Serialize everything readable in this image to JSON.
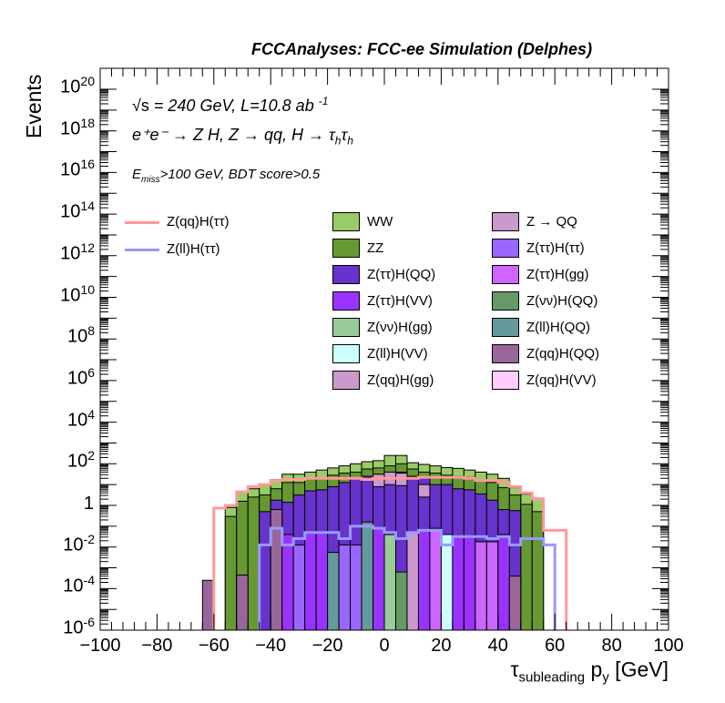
{
  "title": "FCCAnalyses: FCC-ee Simulation (Delphes)",
  "annotations": {
    "line1_sqrt": "√s",
    "line1": " = 240 GeV, L=10.8 ab",
    "line1_sup": "-1",
    "line2": "e⁺e⁻ → Z H, Z → qq, H → τ",
    "line2_sub1": "h",
    "line2_tau": "τ",
    "line2_sub2": "h",
    "line3_E": "E",
    "line3_sub": "miss",
    "line3": ">100 GeV, BDT score>0.5"
  },
  "chart_data": {
    "type": "bar",
    "title": "FCCAnalyses: FCC-ee Simulation (Delphes)",
    "xlabel": "τ_subleading p_y [GeV]",
    "xlabel_main": "τ",
    "xlabel_sub": "subleading",
    "xlabel_rest": " p",
    "xlabel_sub2": "y",
    "xlabel_unit": " [GeV]",
    "ylabel": "Events",
    "yscale": "log",
    "xlim": [
      -100,
      100
    ],
    "ylim_log10": [
      -6,
      20.5
    ],
    "xticks": [
      -100,
      -80,
      -60,
      -40,
      -20,
      0,
      20,
      40,
      60,
      80,
      100
    ],
    "xtick_labels": [
      "−100",
      "−80",
      "−60",
      "−40",
      "−20",
      "0",
      "20",
      "40",
      "60",
      "80",
      "100"
    ],
    "ytick_exponents": [
      -6,
      -4,
      -2,
      0,
      2,
      4,
      6,
      8,
      10,
      12,
      14,
      16,
      18,
      20
    ],
    "ytick_one_label": "1",
    "ytick_base": "10",
    "bin_width": 4,
    "stack_bin_start": -56,
    "stack_log10_tops": {
      "WW": [
        -0.1,
        0.65,
        0.8,
        1.0,
        1.24,
        1.5,
        1.5,
        1.6,
        1.7,
        1.8,
        1.9,
        2.0,
        2.1,
        2.15,
        2.4,
        2.4,
        2.05,
        1.97,
        1.9,
        1.82,
        1.78,
        1.7,
        1.6,
        1.5,
        1.3,
        0.85,
        0.54,
        0.35
      ],
      "ZZ": [
        -0.53,
        0.2,
        0.4,
        0.5,
        0.8,
        1.1,
        1.1,
        1.3,
        1.3,
        1.45,
        1.55,
        1.6,
        1.75,
        1.8,
        1.9,
        2.0,
        1.75,
        1.6,
        1.55,
        1.45,
        1.4,
        1.35,
        1.2,
        1.1,
        0.85,
        0.5,
        0.05,
        -0.3
      ],
      "Z(ττ)H(QQ)": [
        null,
        null,
        null,
        -0.3,
        0.25,
        0.15,
        0.5,
        0.7,
        0.75,
        0.9,
        1.1,
        1.3,
        1.4,
        1.5,
        1.6,
        1.6,
        1.4,
        1.35,
        1.0,
        1.0,
        0.8,
        0.75,
        0.55,
        0.25,
        -0.2,
        -0.25,
        null,
        null
      ]
    },
    "inner_bins": [
      {
        "x": -64,
        "sample": "Z(qq)H(QQ)",
        "log10": -3.6
      },
      {
        "x": -52,
        "sample": "Z(qq)H(QQ)",
        "log10": -3.35
      },
      {
        "x": -44,
        "sample": "Z(ττ)H(QQ)",
        "log10": -1.9
      },
      {
        "x": -40,
        "sample": "Z(qq)H(QQ)",
        "log10": -0.2
      },
      {
        "x": -36,
        "sample": "Z(ττ)H(VV)",
        "log10": -1.4
      },
      {
        "x": -32,
        "sample": "Z(ττ)H(ττ)",
        "log10": -1.9
      },
      {
        "x": -28,
        "sample": "Z(ττ)H(VV)",
        "log10": -1.3
      },
      {
        "x": -24,
        "sample": "Z(ττ)H(VV)",
        "log10": -1.3
      },
      {
        "x": -20,
        "sample": "Z(ll)H(QQ)",
        "log10": -2.26
      },
      {
        "x": -16,
        "sample": "Z(ττ)H(ττ)",
        "log10": -1.9
      },
      {
        "x": -12,
        "sample": "Z(ττ)H(ττ)",
        "log10": -1.9
      },
      {
        "x": -8,
        "sample": "Z(ll)H(QQ)",
        "log10": -0.8
      },
      {
        "x": -4,
        "sample": "Z(ττ)H(VV)",
        "log10": -1.1
      },
      {
        "x": 0,
        "sample": "Z(νν)H(gg)",
        "log10": -1.4
      },
      {
        "x": 4,
        "sample": "Z(νν)H(QQ)",
        "log10": -3.2
      },
      {
        "x": 8,
        "sample": "Z(qq)H(gg)",
        "log10": -1.3
      },
      {
        "x": 12,
        "sample": "Z(ττ)H(VV)",
        "log10": -1.2
      },
      {
        "x": 16,
        "sample": "Z(ττ)H(gg)",
        "log10": -1.1
      },
      {
        "x": 20,
        "sample": "Z(ll)H(VV)",
        "log10": -1.4
      },
      {
        "x": 24,
        "sample": "Z(ττ)H(VV)",
        "log10": -1.5
      },
      {
        "x": 28,
        "sample": "Z(ττ)H(VV)",
        "log10": -1.5
      },
      {
        "x": 32,
        "sample": "Z(ττ)H(gg)",
        "log10": -1.75
      },
      {
        "x": 36,
        "sample": "Z(ττ)H(gg)",
        "log10": -1.75
      },
      {
        "x": 40,
        "sample": "Z(ττ)H(VV)",
        "log10": -1.4
      },
      {
        "x": 44,
        "sample": "Z(qq)H(QQ)",
        "log10": -3.4
      }
    ],
    "center_bins": [
      {
        "x": -4,
        "sample": "Z → QQ",
        "log10": 1.5
      },
      {
        "x": 0,
        "sample": "Z → QQ",
        "log10": 1.6
      },
      {
        "x": 4,
        "sample": "Z → QQ",
        "log10": 1.55
      },
      {
        "x": 12,
        "sample": "Z → QQ",
        "log10": 1.0
      }
    ],
    "lines": [
      {
        "name": "Z(qq)H(ττ)",
        "color": "#ff9999",
        "bin_start": -60,
        "log10": [
          -0.13,
          0,
          0.65,
          0.9,
          1.0,
          1.2,
          1.25,
          1.25,
          1.3,
          1.3,
          1.3,
          1.3,
          1.3,
          1.25,
          1.3,
          1.3,
          1.3,
          1.3,
          1.35,
          1.35,
          1.35,
          1.35,
          1.3,
          1.2,
          1.2,
          1.1,
          0.9,
          0.6,
          0.3,
          -1.2,
          -1.2
        ]
      },
      {
        "name": "Z(ll)H(ττ)",
        "color": "#9999ff",
        "bin_start": -44,
        "log10": [
          -1.9,
          -1.1,
          -1.9,
          -1.6,
          -1.3,
          -1.3,
          -1.3,
          -1.6,
          -1.0,
          -1.0,
          -1.1,
          -1.3,
          -1.6,
          -1.3,
          -1.2,
          -1.2,
          -1.9,
          -1.5,
          -1.5,
          -1.5,
          -1.6,
          -1.5,
          -1.9,
          -1.6,
          -1.6,
          -1.9
        ]
      }
    ],
    "legend_lines": [
      {
        "label": "Z(qq)H(ττ)",
        "color": "#ff9999"
      },
      {
        "label": "Z(ll)H(ττ)",
        "color": "#9999ff"
      }
    ],
    "legend_fills": [
      {
        "label": "WW",
        "color": "#99cc66"
      },
      {
        "label": "Z → QQ",
        "color": "#cc99cc"
      },
      {
        "label": "ZZ",
        "color": "#669933"
      },
      {
        "label": "Z(ττ)H(ττ)",
        "color": "#9966ff"
      },
      {
        "label": "Z(ττ)H(QQ)",
        "color": "#6633cc"
      },
      {
        "label": "Z(ττ)H(gg)",
        "color": "#cc66ff"
      },
      {
        "label": "Z(ττ)H(VV)",
        "color": "#9933ff"
      },
      {
        "label": "Z(νν)H(QQ)",
        "color": "#669966"
      },
      {
        "label": "Z(νν)H(gg)",
        "color": "#99cc99"
      },
      {
        "label": "Z(ll)H(QQ)",
        "color": "#669999"
      },
      {
        "label": "Z(ll)H(VV)",
        "color": "#ccffff"
      },
      {
        "label": "Z(qq)H(QQ)",
        "color": "#996699"
      },
      {
        "label": "Z(qq)H(gg)",
        "color": "#cc99cc"
      },
      {
        "label": "Z(qq)H(VV)",
        "color": "#ffccff"
      }
    ]
  }
}
